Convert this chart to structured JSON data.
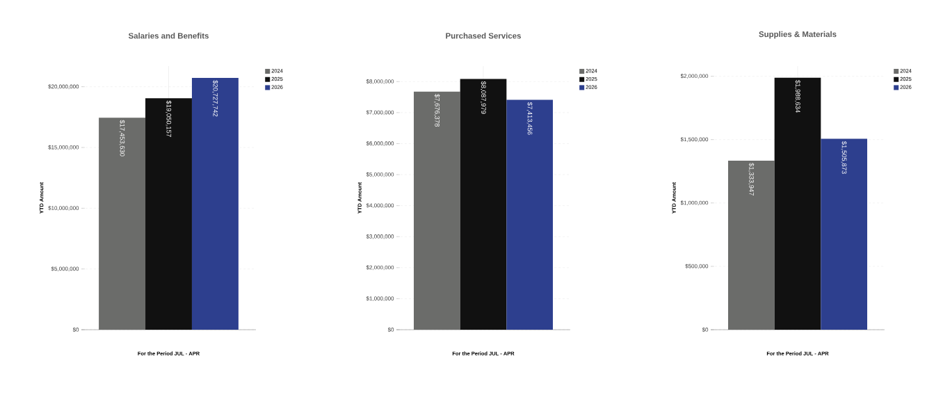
{
  "chart_data": [
    {
      "type": "bar",
      "title": "Salaries and Benefits",
      "xlabel": "For the Period JUL - APR",
      "ylabel": "YTD Amount",
      "categories": [
        null
      ],
      "series": [
        {
          "name": "2024",
          "color": "#6b6c6a",
          "values": [
            17453630
          ],
          "value_labels": [
            "$17,453,630"
          ]
        },
        {
          "name": "2025",
          "color": "#111111",
          "values": [
            19050157
          ],
          "value_labels": [
            "$19,050,157"
          ]
        },
        {
          "name": "2026",
          "color": "#2d3f8e",
          "values": [
            20727742
          ],
          "value_labels": [
            "$20,727,742"
          ]
        }
      ],
      "ylim": [
        0,
        21700000
      ],
      "yticks": [
        {
          "value": 0,
          "label": "$0"
        },
        {
          "value": 5000000,
          "label": "$5,000,000"
        },
        {
          "value": 10000000,
          "label": "$10,000,000"
        },
        {
          "value": 15000000,
          "label": "$15,000,000"
        },
        {
          "value": 20000000,
          "label": "$20,000,000"
        }
      ],
      "grid": true,
      "legend": "top right"
    },
    {
      "type": "bar",
      "title": "Purchased Services",
      "xlabel": "For the Period JUL - APR",
      "ylabel": "YTD Amount",
      "categories": [
        null
      ],
      "series": [
        {
          "name": "2024",
          "color": "#6b6c6a",
          "values": [
            7676378
          ],
          "value_labels": [
            "$7,676,378"
          ]
        },
        {
          "name": "2025",
          "color": "#111111",
          "values": [
            8087979
          ],
          "value_labels": [
            "$8,087,979"
          ]
        },
        {
          "name": "2026",
          "color": "#2d3f8e",
          "values": [
            7413456
          ],
          "value_labels": [
            "$7,413,456"
          ]
        }
      ],
      "ylim": [
        0,
        8500000
      ],
      "yticks": [
        {
          "value": 0,
          "label": "$0"
        },
        {
          "value": 1000000,
          "label": "$1,000,000"
        },
        {
          "value": 2000000,
          "label": "$2,000,000"
        },
        {
          "value": 3000000,
          "label": "$3,000,000"
        },
        {
          "value": 4000000,
          "label": "$4,000,000"
        },
        {
          "value": 5000000,
          "label": "$5,000,000"
        },
        {
          "value": 6000000,
          "label": "$6,000,000"
        },
        {
          "value": 7000000,
          "label": "$7,000,000"
        },
        {
          "value": 8000000,
          "label": "$8,000,000"
        }
      ],
      "grid": true,
      "legend": "top right"
    },
    {
      "type": "bar",
      "title": "Supplies & Materials",
      "xlabel": "For the Period JUL - APR",
      "ylabel": "YTD Amount",
      "categories": [
        null
      ],
      "series": [
        {
          "name": "2024",
          "color": "#6b6c6a",
          "values": [
            1333947
          ],
          "value_labels": [
            "$1,333,947"
          ]
        },
        {
          "name": "2025",
          "color": "#111111",
          "values": [
            1988634
          ],
          "value_labels": [
            "$1,988,634"
          ]
        },
        {
          "name": "2026",
          "color": "#2d3f8e",
          "values": [
            1505873
          ],
          "value_labels": [
            "$1,505,873"
          ]
        }
      ],
      "ylim": [
        0,
        2080000
      ],
      "yticks": [
        {
          "value": 0,
          "label": "$0"
        },
        {
          "value": 500000,
          "label": "$500,000"
        },
        {
          "value": 1000000,
          "label": "$1,000,000"
        },
        {
          "value": 1500000,
          "label": "$1,500,000"
        },
        {
          "value": 2000000,
          "label": "$2,000,000"
        }
      ],
      "grid": true,
      "legend": "top right"
    }
  ]
}
